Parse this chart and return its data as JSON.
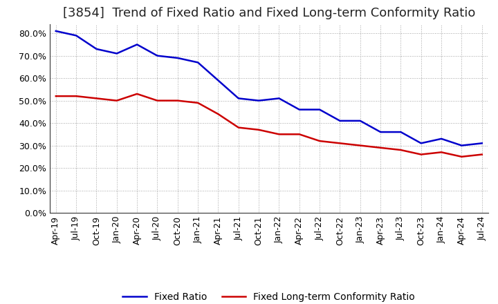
{
  "title": "[3854]  Trend of Fixed Ratio and Fixed Long-term Conformity Ratio",
  "x_labels": [
    "Apr-19",
    "Jul-19",
    "Oct-19",
    "Jan-20",
    "Apr-20",
    "Jul-20",
    "Oct-20",
    "Jan-21",
    "Apr-21",
    "Jul-21",
    "Oct-21",
    "Jan-22",
    "Apr-22",
    "Jul-22",
    "Oct-22",
    "Jan-23",
    "Apr-23",
    "Jul-23",
    "Oct-23",
    "Jan-24",
    "Apr-24",
    "Jul-24"
  ],
  "fixed_ratio": [
    0.81,
    0.79,
    0.73,
    0.71,
    0.75,
    0.7,
    0.69,
    0.67,
    0.59,
    0.51,
    0.5,
    0.51,
    0.46,
    0.46,
    0.41,
    0.41,
    0.36,
    0.36,
    0.31,
    0.33,
    0.3,
    0.31
  ],
  "fixed_lt_ratio": [
    0.52,
    0.52,
    0.51,
    0.5,
    0.53,
    0.5,
    0.5,
    0.49,
    0.44,
    0.38,
    0.37,
    0.35,
    0.35,
    0.32,
    0.31,
    0.3,
    0.29,
    0.28,
    0.26,
    0.27,
    0.25,
    0.26
  ],
  "fixed_ratio_color": "#0000CC",
  "fixed_lt_ratio_color": "#CC0000",
  "background_color": "#FFFFFF",
  "grid_color": "#999999",
  "ylim_min": 0.0,
  "ylim_max": 0.84,
  "yticks": [
    0.0,
    0.1,
    0.2,
    0.3,
    0.4,
    0.5,
    0.6,
    0.7,
    0.8
  ],
  "legend_fixed_ratio": "Fixed Ratio",
  "legend_fixed_lt_ratio": "Fixed Long-term Conformity Ratio",
  "title_fontsize": 13,
  "tick_fontsize": 9,
  "legend_fontsize": 10,
  "line_width": 1.8
}
